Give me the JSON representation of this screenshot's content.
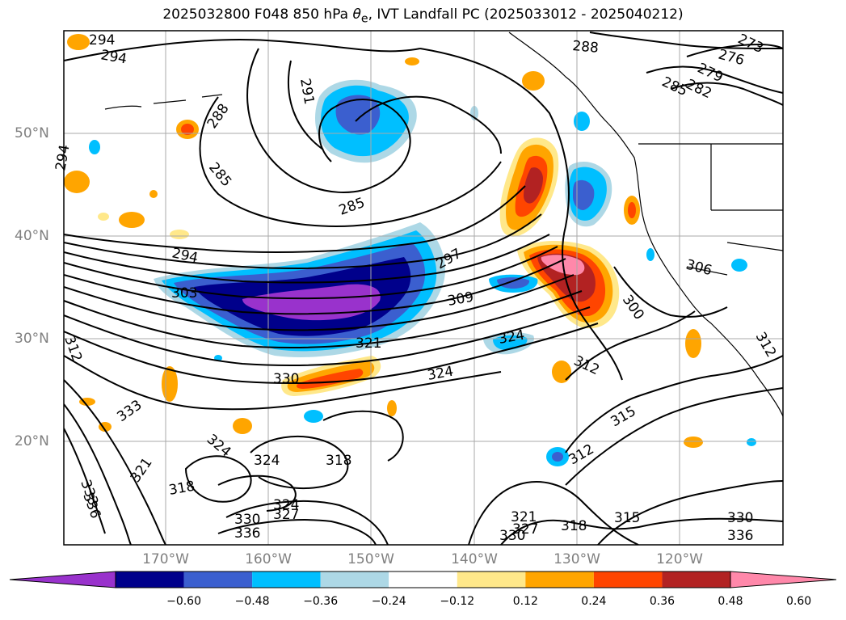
{
  "title": {
    "prefix": "2025032800 F048 850 hPa ",
    "theta": "θ",
    "sub": "e",
    "suffix": ", IVT Landfall PC (2025033012 - 2025040212)"
  },
  "lat_labels": [
    "50°N",
    "40°N",
    "30°N",
    "20°N"
  ],
  "lon_labels": [
    "170°W",
    "160°W",
    "150°W",
    "140°W",
    "130°W",
    "120°W"
  ],
  "colorbar": {
    "colors": [
      "#9932cc",
      "#00008b",
      "#3b5fcf",
      "#00bfff",
      "#add8e6",
      "#ffffff",
      "#ffe88a",
      "#ffa500",
      "#ff4500",
      "#b22222",
      "#ff88aa"
    ],
    "tick_labels": [
      "−0.60",
      "−0.48",
      "−0.36",
      "−0.24",
      "−0.12",
      "0.12",
      "0.24",
      "0.36",
      "0.48",
      "0.60"
    ]
  },
  "contour_labels": [
    "288",
    "291",
    "297",
    "300",
    "303",
    "306",
    "309",
    "312",
    "315",
    "318",
    "321",
    "324",
    "327",
    "330",
    "333",
    "336",
    "279",
    "276",
    "273",
    "282",
    "285",
    "294"
  ]
}
